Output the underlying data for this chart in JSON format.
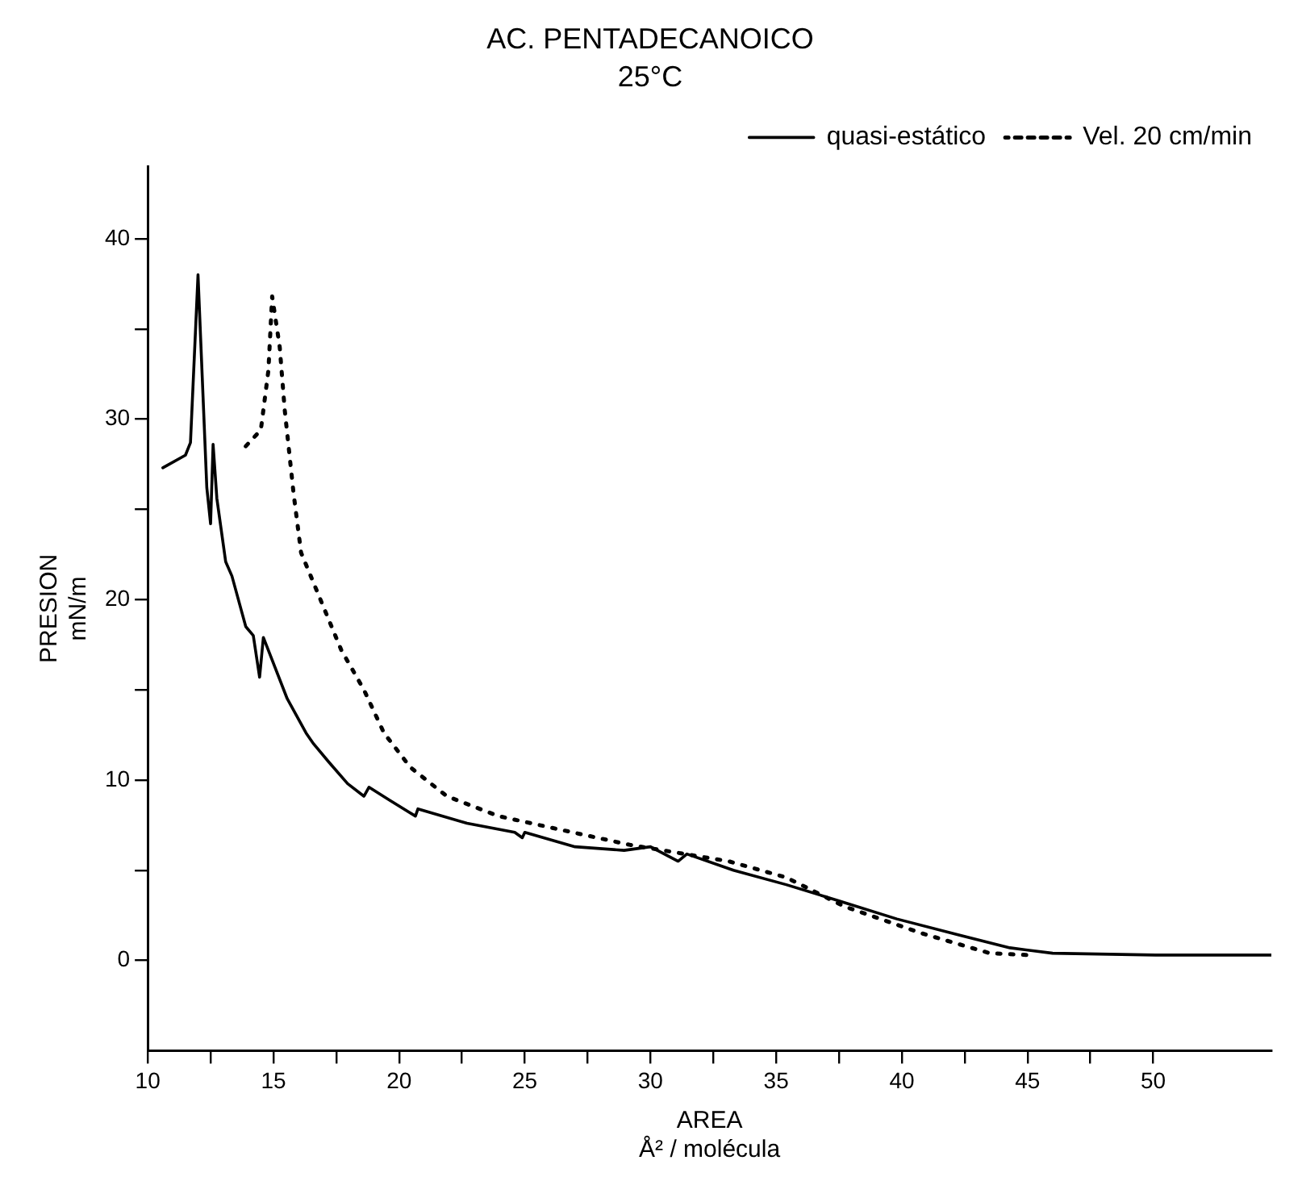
{
  "chart_data": {
    "type": "line",
    "title": "AC. PENTADECANOICO",
    "subtitle": "25°C",
    "xlabel": "AREA\nÅ² / molécula",
    "ylabel": "PRESION\nmN/m",
    "xlim": [
      10,
      54.7
    ],
    "ylim": [
      -5,
      44
    ],
    "xticks": [
      10,
      {
        "value": 12.5,
        "label": null
      },
      15,
      {
        "value": 17.5,
        "label": null
      },
      20,
      {
        "value": 22.5,
        "label": null
      },
      25,
      {
        "value": 27.5,
        "label": null
      },
      30,
      {
        "value": 32.5,
        "label": null
      },
      35,
      {
        "value": 37.5,
        "label": null
      },
      40,
      {
        "value": 42.5,
        "label": null
      },
      45,
      {
        "value": 47.5,
        "label": null
      },
      50
    ],
    "yticks": [
      0,
      {
        "value": 5,
        "label": null
      },
      10,
      {
        "value": 15,
        "label": null
      },
      20,
      {
        "value": 25,
        "label": null
      },
      30,
      {
        "value": 35,
        "label": null
      },
      40
    ],
    "grid": false,
    "legend": "top right",
    "marker": "none",
    "series": [
      {
        "name": "quasi-estático",
        "color": "#000000",
        "line_style": "solid",
        "x": [
          10.6,
          11.5,
          11.7,
          12.0,
          12.35,
          12.5,
          12.6,
          12.75,
          13.1,
          13.35,
          13.9,
          14.2,
          14.45,
          14.6,
          15.55,
          16.3,
          16.6,
          17.2,
          17.95,
          18.6,
          18.8,
          19.6,
          20.65,
          20.75,
          22.7,
          24.6,
          24.9,
          25.0,
          27.0,
          28.95,
          30.0,
          31.1,
          31.45,
          33.3,
          35.4,
          37.5,
          39.8,
          42.3,
          44.3,
          46.0,
          50.1,
          54.7
        ],
        "values": [
          27.3,
          28.0,
          28.7,
          38.0,
          26.2,
          24.2,
          28.6,
          25.6,
          22.1,
          21.3,
          18.5,
          18.0,
          15.7,
          17.9,
          14.5,
          12.6,
          12.0,
          11.0,
          9.8,
          9.1,
          9.6,
          8.9,
          8.0,
          8.4,
          7.6,
          7.1,
          6.8,
          7.1,
          6.3,
          6.1,
          6.3,
          5.5,
          5.9,
          5.0,
          4.2,
          3.3,
          2.3,
          1.4,
          0.7,
          0.4,
          0.3,
          0.3
        ]
      },
      {
        "name": "Vel. 20 cm/min",
        "color": "#000000",
        "line_style": "dotted",
        "x": [
          13.9,
          14.5,
          14.8,
          14.95,
          15.25,
          15.45,
          15.8,
          16.1,
          16.9,
          17.7,
          18.6,
          19.4,
          20.45,
          21.9,
          23.95,
          26.9,
          29.2,
          33.1,
          35.4,
          37.7,
          40.8,
          43.5,
          45.0
        ],
        "values": [
          28.5,
          29.4,
          32.7,
          36.8,
          34.0,
          30.5,
          25.9,
          22.6,
          19.9,
          17.2,
          15.0,
          12.6,
          10.7,
          9.1,
          8.0,
          7.1,
          6.4,
          5.5,
          4.6,
          3.0,
          1.5,
          0.4,
          0.3
        ]
      }
    ]
  }
}
